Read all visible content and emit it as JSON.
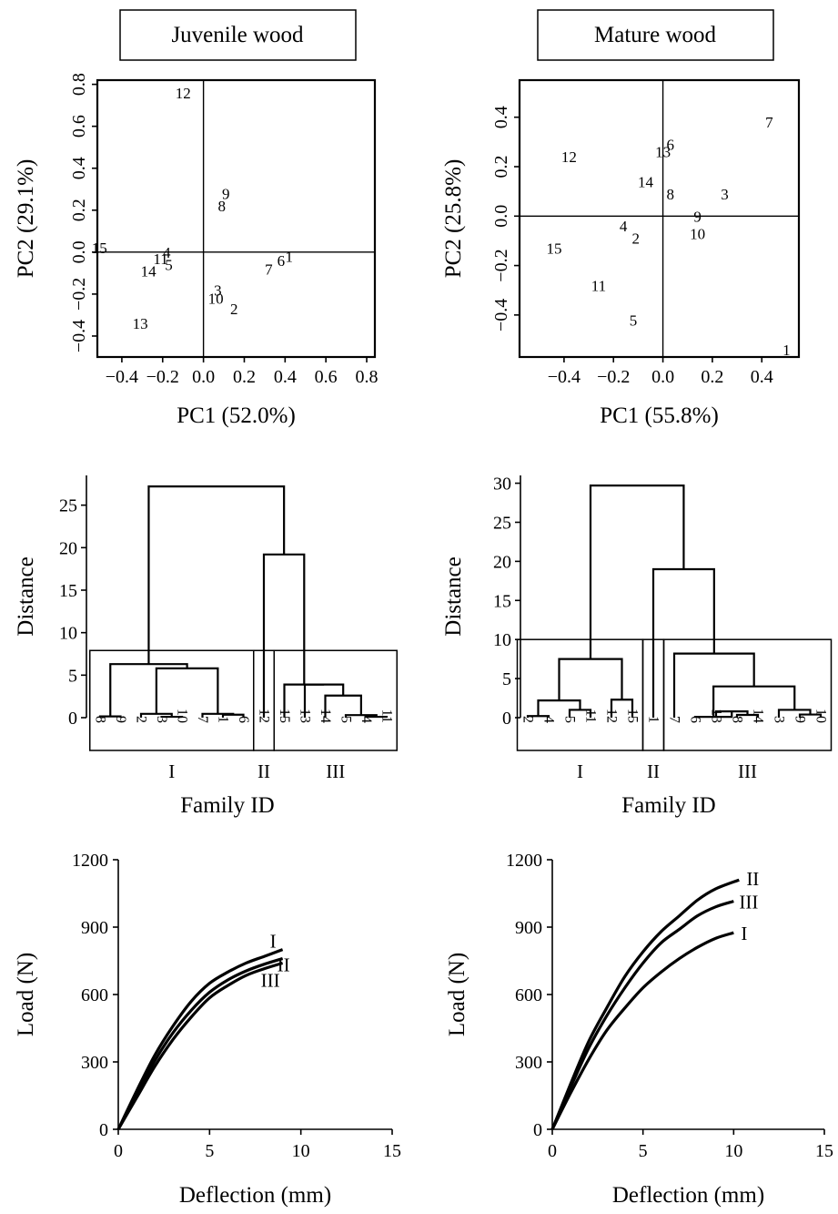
{
  "titles": {
    "juvenile": "Juvenile wood",
    "mature": "Mature wood"
  },
  "chart_data": [
    {
      "id": "pca_juvenile",
      "type": "scatter",
      "xlabel": "PC1 (52.0%)",
      "ylabel": "PC2 (29.1%)",
      "xlim": [
        -0.52,
        0.84
      ],
      "ylim": [
        -0.5,
        0.82
      ],
      "xticks": [
        -0.4,
        -0.2,
        0.0,
        0.2,
        0.4,
        0.6,
        0.8
      ],
      "yticks": [
        -0.4,
        -0.2,
        0.0,
        0.2,
        0.4,
        0.6,
        0.8
      ],
      "points": [
        {
          "label": "12",
          "x": -0.1,
          "y": 0.76
        },
        {
          "label": "9",
          "x": 0.11,
          "y": 0.28
        },
        {
          "label": "8",
          "x": 0.09,
          "y": 0.22
        },
        {
          "label": "15",
          "x": -0.51,
          "y": 0.02
        },
        {
          "label": "4",
          "x": -0.18,
          "y": 0.0
        },
        {
          "label": "11",
          "x": -0.21,
          "y": -0.03
        },
        {
          "label": "5",
          "x": -0.17,
          "y": -0.06
        },
        {
          "label": "14",
          "x": -0.27,
          "y": -0.09
        },
        {
          "label": "1",
          "x": 0.42,
          "y": -0.02
        },
        {
          "label": "6",
          "x": 0.38,
          "y": -0.04
        },
        {
          "label": "7",
          "x": 0.32,
          "y": -0.08
        },
        {
          "label": "3",
          "x": 0.07,
          "y": -0.18
        },
        {
          "label": "10",
          "x": 0.06,
          "y": -0.22
        },
        {
          "label": "2",
          "x": 0.15,
          "y": -0.27
        },
        {
          "label": "13",
          "x": -0.31,
          "y": -0.34
        }
      ]
    },
    {
      "id": "pca_mature",
      "type": "scatter",
      "xlabel": "PC1 (55.8%)",
      "ylabel": "PC2 (25.8%)",
      "xlim": [
        -0.58,
        0.55
      ],
      "ylim": [
        -0.57,
        0.55
      ],
      "xticks": [
        -0.4,
        -0.2,
        0.0,
        0.2,
        0.4
      ],
      "yticks": [
        -0.4,
        -0.2,
        0.0,
        0.2,
        0.4
      ],
      "points": [
        {
          "label": "7",
          "x": 0.43,
          "y": 0.38
        },
        {
          "label": "6",
          "x": 0.03,
          "y": 0.29
        },
        {
          "label": "13",
          "x": 0.0,
          "y": 0.26
        },
        {
          "label": "12",
          "x": -0.38,
          "y": 0.24
        },
        {
          "label": "14",
          "x": -0.07,
          "y": 0.14
        },
        {
          "label": "8",
          "x": 0.03,
          "y": 0.09
        },
        {
          "label": "3",
          "x": 0.25,
          "y": 0.09
        },
        {
          "label": "9",
          "x": 0.14,
          "y": 0.0
        },
        {
          "label": "4",
          "x": -0.16,
          "y": -0.04
        },
        {
          "label": "10",
          "x": 0.14,
          "y": -0.07
        },
        {
          "label": "2",
          "x": -0.11,
          "y": -0.09
        },
        {
          "label": "15",
          "x": -0.44,
          "y": -0.13
        },
        {
          "label": "11",
          "x": -0.26,
          "y": -0.28
        },
        {
          "label": "5",
          "x": -0.12,
          "y": -0.42
        },
        {
          "label": "1",
          "x": 0.5,
          "y": -0.54
        }
      ]
    },
    {
      "id": "dend_juvenile",
      "type": "dendrogram",
      "ylabel": "Distance",
      "xlabel": "Family ID",
      "ylim": [
        0,
        28.5
      ],
      "yticks": [
        0,
        5,
        10,
        15,
        20,
        25
      ],
      "leaves": [
        "8",
        "9",
        "2",
        "3",
        "10",
        "7",
        "1",
        "6",
        "12",
        "15",
        "13",
        "14",
        "5",
        "4",
        "11"
      ],
      "merges": [
        {
          "a": 0,
          "b": 1,
          "h": 0.15
        },
        {
          "a": 3,
          "b": 4,
          "h": 0.1
        },
        {
          "a": 2,
          "b": -2,
          "h": 0.45
        },
        {
          "a": 6,
          "b": 7,
          "h": 0.35
        },
        {
          "a": 5,
          "b": -4,
          "h": 0.45
        },
        {
          "a": -3,
          "b": -5,
          "h": 5.8
        },
        {
          "a": -1,
          "b": -6,
          "h": 6.3
        },
        {
          "a": 13,
          "b": 14,
          "h": 0.1
        },
        {
          "a": 12,
          "b": -8,
          "h": 0.3
        },
        {
          "a": 11,
          "b": -9,
          "h": 2.6
        },
        {
          "a": 10,
          "b": -10,
          "h": 3.9
        },
        {
          "a": 9,
          "b": -11,
          "h": 3.9
        },
        {
          "a": 8,
          "b": -12,
          "h": 19.2
        },
        {
          "a": -7,
          "b": -13,
          "h": 27.2
        }
      ],
      "groups": [
        {
          "label": "I",
          "from": 0,
          "to": 7,
          "top": 7.9
        },
        {
          "label": "II",
          "from": 8,
          "to": 8,
          "top": 7.9
        },
        {
          "label": "III",
          "from": 9,
          "to": 14,
          "top": 7.9
        }
      ]
    },
    {
      "id": "dend_mature",
      "type": "dendrogram",
      "ylabel": "Distance",
      "xlabel": "Family ID",
      "ylim": [
        0,
        31
      ],
      "yticks": [
        0,
        5,
        10,
        15,
        20,
        25,
        30
      ],
      "leaves": [
        "2",
        "4",
        "5",
        "11",
        "12",
        "15",
        "1",
        "7",
        "6",
        "13",
        "8",
        "14",
        "3",
        "9",
        "10"
      ],
      "merges": [
        {
          "a": 0,
          "b": 1,
          "h": 0.2
        },
        {
          "a": 2,
          "b": 3,
          "h": 1.0
        },
        {
          "a": -1,
          "b": -2,
          "h": 2.2
        },
        {
          "a": 4,
          "b": 5,
          "h": 2.3
        },
        {
          "a": -3,
          "b": -4,
          "h": 7.5
        },
        {
          "a": 10,
          "b": 11,
          "h": 0.35
        },
        {
          "a": 9,
          "b": -6,
          "h": 0.8
        },
        {
          "a": 8,
          "b": -7,
          "h": 0.1
        },
        {
          "a": 13,
          "b": 14,
          "h": 0.4
        },
        {
          "a": 12,
          "b": -9,
          "h": 1.0
        },
        {
          "a": -8,
          "b": -10,
          "h": 4.0
        },
        {
          "a": 7,
          "b": -11,
          "h": 8.2
        },
        {
          "a": 6,
          "b": -12,
          "h": 19.0
        },
        {
          "a": -5,
          "b": -13,
          "h": 29.7
        }
      ],
      "groups": [
        {
          "label": "I",
          "from": 0,
          "to": 5,
          "top": 10.0
        },
        {
          "label": "II",
          "from": 6,
          "to": 6,
          "top": 10.0
        },
        {
          "label": "III",
          "from": 7,
          "to": 14,
          "top": 10.0
        }
      ]
    },
    {
      "id": "load_juvenile",
      "type": "line",
      "xlabel": "Deflection (mm)",
      "ylabel": "Load (N)",
      "xlim": [
        0,
        15
      ],
      "ylim": [
        0,
        1200
      ],
      "xticks": [
        0,
        5,
        10,
        15
      ],
      "yticks": [
        0,
        300,
        600,
        900,
        1200
      ],
      "series": [
        {
          "name": "I",
          "x": [
            0,
            1,
            2,
            3,
            4,
            5,
            6,
            7,
            8,
            9
          ],
          "y": [
            0,
            170,
            330,
            460,
            570,
            650,
            700,
            740,
            770,
            800
          ]
        },
        {
          "name": "II",
          "x": [
            0,
            1,
            2,
            3,
            4,
            5,
            6,
            7,
            8,
            9
          ],
          "y": [
            0,
            150,
            305,
            430,
            530,
            610,
            665,
            705,
            735,
            760
          ]
        },
        {
          "name": "III",
          "x": [
            0,
            1,
            2,
            3,
            4,
            5,
            6,
            7,
            8,
            9
          ],
          "y": [
            0,
            140,
            280,
            400,
            500,
            585,
            640,
            685,
            715,
            740
          ]
        }
      ]
    },
    {
      "id": "load_mature",
      "type": "line",
      "xlabel": "Deflection (mm)",
      "ylabel": "Load (N)",
      "xlim": [
        0,
        15
      ],
      "ylim": [
        0,
        1200
      ],
      "xticks": [
        0,
        5,
        10,
        15
      ],
      "yticks": [
        0,
        300,
        600,
        900,
        1200
      ],
      "series": [
        {
          "name": "II",
          "x": [
            0,
            1,
            2,
            3,
            4,
            5,
            6,
            7,
            8,
            9,
            10.3
          ],
          "y": [
            0,
            200,
            390,
            540,
            680,
            790,
            880,
            950,
            1020,
            1070,
            1110
          ]
        },
        {
          "name": "III",
          "x": [
            0,
            1,
            2,
            3,
            4,
            5,
            6,
            7,
            8,
            9,
            10
          ],
          "y": [
            0,
            185,
            360,
            505,
            630,
            740,
            830,
            890,
            950,
            990,
            1015
          ]
        },
        {
          "name": "I",
          "x": [
            0,
            1,
            2,
            3,
            4,
            5,
            6,
            7,
            8,
            9,
            10
          ],
          "y": [
            0,
            160,
            310,
            440,
            540,
            630,
            700,
            760,
            810,
            850,
            875
          ]
        }
      ]
    }
  ]
}
